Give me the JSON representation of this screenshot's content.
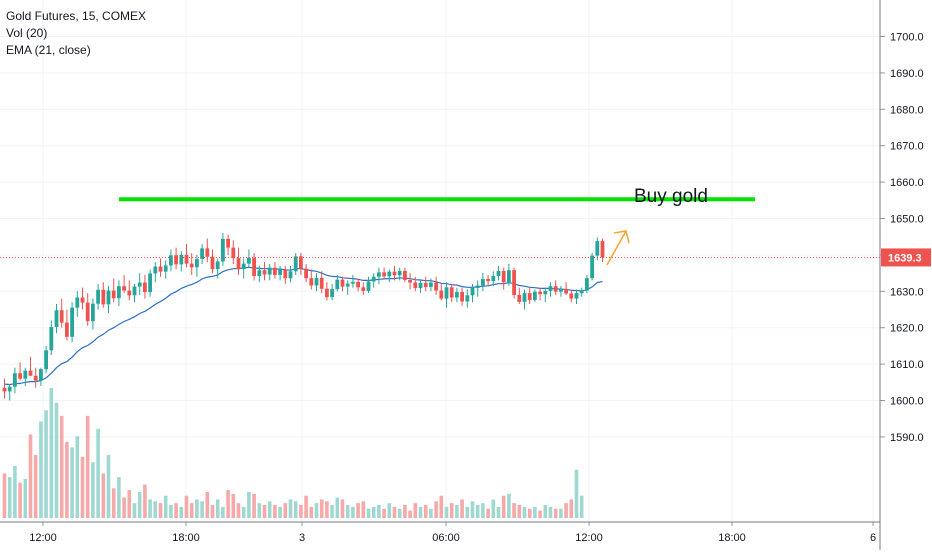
{
  "legend": {
    "symbol": "Gold Futures, 15, COMEX",
    "volume": "Vol (20)",
    "ema": "EMA (21, close)"
  },
  "chart_data": {
    "type": "candlestick",
    "symbol": "Gold Futures",
    "interval": "15",
    "exchange": "COMEX",
    "y_ticks": [
      1590.0,
      1600.0,
      1610.0,
      1620.0,
      1630.0,
      1640.0,
      1650.0,
      1660.0,
      1670.0,
      1680.0,
      1690.0,
      1700.0
    ],
    "ylim": [
      1583.0,
      1711.0
    ],
    "x_ticks": [
      "12:00",
      "18:00",
      "3",
      "06:00",
      "12:00",
      "18:00",
      "6"
    ],
    "last_price": "1639.3",
    "last_price_value": 1639.3,
    "annotations": {
      "text": "Buy gold",
      "level": 1655.3,
      "level_color": "#00e600",
      "arrow_color": "#f5a623"
    },
    "colors": {
      "up": "#26a69a",
      "down": "#ef5350",
      "ema": "#2a6fc9",
      "vol_up": "#9fd8d1",
      "vol_down": "#f5a9a8",
      "last_price_line": "#ef5350"
    },
    "candles": [
      [
        1603.5,
        1606.0,
        1600.5,
        1602.5
      ],
      [
        1602.5,
        1604.5,
        1600.0,
        1603.8
      ],
      [
        1603.8,
        1609.0,
        1602.0,
        1607.5
      ],
      [
        1607.5,
        1610.5,
        1605.5,
        1606.0
      ],
      [
        1606.0,
        1609.0,
        1604.0,
        1608.2
      ],
      [
        1608.2,
        1612.0,
        1606.8,
        1606.8
      ],
      [
        1606.8,
        1609.0,
        1603.5,
        1605.5
      ],
      [
        1605.5,
        1609.0,
        1604.0,
        1608.6
      ],
      [
        1608.6,
        1615.0,
        1607.5,
        1613.8
      ],
      [
        1613.8,
        1622.0,
        1612.5,
        1620.2
      ],
      [
        1620.2,
        1626.5,
        1618.5,
        1624.8
      ],
      [
        1624.8,
        1628.0,
        1620.0,
        1621.4
      ],
      [
        1621.4,
        1625.0,
        1616.5,
        1617.5
      ],
      [
        1617.5,
        1627.0,
        1616.0,
        1625.5
      ],
      [
        1625.5,
        1630.0,
        1623.0,
        1628.3
      ],
      [
        1628.3,
        1631.0,
        1625.0,
        1626.9
      ],
      [
        1626.9,
        1629.5,
        1620.5,
        1621.8
      ],
      [
        1621.8,
        1628.0,
        1619.5,
        1626.6
      ],
      [
        1626.6,
        1632.0,
        1625.0,
        1630.4
      ],
      [
        1630.4,
        1632.5,
        1625.5,
        1626.4
      ],
      [
        1626.4,
        1631.5,
        1624.0,
        1630.2
      ],
      [
        1630.2,
        1633.5,
        1627.0,
        1628.1
      ],
      [
        1628.1,
        1633.0,
        1626.0,
        1631.4
      ],
      [
        1631.4,
        1634.5,
        1629.5,
        1630.2
      ],
      [
        1630.2,
        1633.0,
        1627.5,
        1628.9
      ],
      [
        1628.9,
        1632.0,
        1627.0,
        1631.3
      ],
      [
        1631.3,
        1635.0,
        1629.0,
        1632.4
      ],
      [
        1632.4,
        1634.5,
        1628.0,
        1629.8
      ],
      [
        1629.8,
        1636.0,
        1628.5,
        1634.9
      ],
      [
        1634.9,
        1638.0,
        1632.5,
        1636.8
      ],
      [
        1636.8,
        1639.0,
        1634.0,
        1635.4
      ],
      [
        1635.4,
        1638.5,
        1633.5,
        1637.1
      ],
      [
        1637.1,
        1641.5,
        1635.5,
        1639.9
      ],
      [
        1639.9,
        1642.0,
        1636.0,
        1637.4
      ],
      [
        1637.4,
        1641.0,
        1635.5,
        1640.0
      ],
      [
        1640.0,
        1643.0,
        1636.5,
        1637.6
      ],
      [
        1637.6,
        1640.5,
        1634.5,
        1636.6
      ],
      [
        1636.6,
        1640.0,
        1634.0,
        1638.9
      ],
      [
        1638.9,
        1643.0,
        1637.5,
        1641.8
      ],
      [
        1641.8,
        1644.5,
        1638.0,
        1639.5
      ],
      [
        1639.5,
        1641.5,
        1635.0,
        1636.1
      ],
      [
        1636.1,
        1639.0,
        1633.5,
        1638.2
      ],
      [
        1638.2,
        1646.0,
        1637.0,
        1644.4
      ],
      [
        1644.4,
        1645.5,
        1640.0,
        1642.0
      ],
      [
        1642.0,
        1644.0,
        1637.5,
        1639.1
      ],
      [
        1639.1,
        1642.0,
        1634.5,
        1636.1
      ],
      [
        1636.1,
        1639.0,
        1633.5,
        1637.6
      ],
      [
        1637.6,
        1641.5,
        1636.5,
        1639.2
      ],
      [
        1639.2,
        1640.5,
        1633.0,
        1634.2
      ],
      [
        1634.2,
        1637.0,
        1632.5,
        1635.8
      ],
      [
        1635.8,
        1638.0,
        1633.0,
        1634.6
      ],
      [
        1634.6,
        1637.5,
        1633.0,
        1636.5
      ],
      [
        1636.5,
        1638.0,
        1633.5,
        1634.5
      ],
      [
        1634.5,
        1637.0,
        1633.0,
        1635.9
      ],
      [
        1635.9,
        1637.0,
        1632.0,
        1633.6
      ],
      [
        1633.6,
        1637.0,
        1632.5,
        1635.5
      ],
      [
        1635.5,
        1640.5,
        1634.5,
        1639.6
      ],
      [
        1639.6,
        1640.5,
        1634.5,
        1636.2
      ],
      [
        1636.2,
        1637.5,
        1632.5,
        1633.6
      ],
      [
        1633.6,
        1636.0,
        1630.5,
        1631.6
      ],
      [
        1631.6,
        1635.0,
        1630.0,
        1633.7
      ],
      [
        1633.7,
        1635.5,
        1629.5,
        1630.7
      ],
      [
        1630.7,
        1632.5,
        1627.5,
        1628.4
      ],
      [
        1628.4,
        1632.0,
        1627.5,
        1630.6
      ],
      [
        1630.6,
        1634.5,
        1630.0,
        1633.2
      ],
      [
        1633.2,
        1634.0,
        1630.0,
        1631.3
      ],
      [
        1631.3,
        1633.0,
        1629.0,
        1632.1
      ],
      [
        1632.1,
        1634.5,
        1631.0,
        1632.6
      ],
      [
        1632.6,
        1633.5,
        1630.0,
        1631.1
      ],
      [
        1631.1,
        1632.5,
        1629.0,
        1630.1
      ],
      [
        1630.1,
        1634.0,
        1629.5,
        1632.7
      ],
      [
        1632.7,
        1635.0,
        1631.0,
        1634.0
      ],
      [
        1634.0,
        1636.5,
        1632.0,
        1635.2
      ],
      [
        1635.2,
        1636.5,
        1633.5,
        1634.1
      ],
      [
        1634.1,
        1636.0,
        1632.5,
        1635.4
      ],
      [
        1635.4,
        1637.0,
        1633.0,
        1634.4
      ],
      [
        1634.4,
        1636.5,
        1633.0,
        1635.6
      ],
      [
        1635.6,
        1636.5,
        1632.5,
        1633.1
      ],
      [
        1633.1,
        1635.0,
        1630.5,
        1632.4
      ],
      [
        1632.4,
        1634.0,
        1630.0,
        1630.9
      ],
      [
        1630.9,
        1633.0,
        1629.5,
        1632.3
      ],
      [
        1632.3,
        1634.0,
        1630.0,
        1631.2
      ],
      [
        1631.2,
        1633.5,
        1630.0,
        1632.4
      ],
      [
        1632.4,
        1634.0,
        1629.0,
        1630.2
      ],
      [
        1630.2,
        1632.0,
        1627.5,
        1628.0
      ],
      [
        1628.0,
        1632.5,
        1625.5,
        1631.1
      ],
      [
        1631.1,
        1632.0,
        1627.0,
        1628.3
      ],
      [
        1628.3,
        1631.0,
        1627.0,
        1629.8
      ],
      [
        1629.8,
        1631.0,
        1626.0,
        1627.2
      ],
      [
        1627.2,
        1630.5,
        1625.5,
        1628.9
      ],
      [
        1628.9,
        1632.0,
        1627.0,
        1630.9
      ],
      [
        1630.9,
        1633.0,
        1628.5,
        1631.6
      ],
      [
        1631.6,
        1635.0,
        1630.0,
        1633.4
      ],
      [
        1633.4,
        1634.5,
        1631.5,
        1632.8
      ],
      [
        1632.8,
        1635.5,
        1631.5,
        1634.2
      ],
      [
        1634.2,
        1637.0,
        1633.0,
        1635.6
      ],
      [
        1635.6,
        1636.5,
        1630.5,
        1632.5
      ],
      [
        1632.5,
        1637.5,
        1631.5,
        1635.8
      ],
      [
        1635.8,
        1636.5,
        1628.0,
        1629.0
      ],
      [
        1629.0,
        1631.0,
        1626.5,
        1627.1
      ],
      [
        1627.1,
        1630.5,
        1625.0,
        1629.5
      ],
      [
        1629.5,
        1631.0,
        1626.5,
        1627.6
      ],
      [
        1627.6,
        1630.5,
        1627.0,
        1629.9
      ],
      [
        1629.9,
        1631.0,
        1627.5,
        1629.2
      ],
      [
        1629.2,
        1631.0,
        1627.0,
        1630.1
      ],
      [
        1630.1,
        1632.5,
        1628.5,
        1631.4
      ],
      [
        1631.4,
        1633.0,
        1629.0,
        1629.9
      ],
      [
        1629.9,
        1631.5,
        1628.5,
        1630.6
      ],
      [
        1630.6,
        1632.5,
        1629.0,
        1629.4
      ],
      [
        1629.4,
        1630.5,
        1627.0,
        1628.0
      ],
      [
        1628.0,
        1630.5,
        1626.5,
        1629.5
      ],
      [
        1629.5,
        1631.0,
        1628.5,
        1630.2
      ],
      [
        1630.2,
        1634.5,
        1629.5,
        1633.6
      ],
      [
        1633.6,
        1640.5,
        1633.0,
        1639.8
      ],
      [
        1639.8,
        1644.8,
        1638.5,
        1643.8
      ],
      [
        1643.8,
        1644.5,
        1638.0,
        1639.3
      ]
    ],
    "volume": [
      24,
      22,
      28,
      19,
      21,
      45,
      34,
      52,
      58,
      70,
      62,
      55,
      41,
      38,
      44,
      33,
      55,
      30,
      48,
      24,
      34,
      16,
      22,
      11,
      15,
      8,
      14,
      18,
      10,
      9,
      8,
      12,
      7,
      8,
      6,
      12,
      8,
      10,
      9,
      14,
      7,
      10,
      6,
      15,
      13,
      8,
      6,
      14,
      13,
      8,
      7,
      9,
      7,
      6,
      8,
      10,
      9,
      7,
      12,
      6,
      8,
      10,
      9,
      7,
      11,
      10,
      7,
      6,
      8,
      9,
      5,
      6,
      7,
      5,
      8,
      6,
      5,
      7,
      4,
      8,
      6,
      7,
      5,
      9,
      12,
      6,
      8,
      7,
      10,
      6,
      9,
      7,
      8,
      5,
      10,
      6,
      12,
      13,
      8,
      7,
      6,
      5,
      6,
      4,
      7,
      6,
      5,
      5,
      8,
      10,
      26,
      12
    ],
    "ema": [
      1604.5,
      1604.4,
      1604.6,
      1604.7,
      1605.0,
      1605.2,
      1605.2,
      1605.5,
      1606.2,
      1607.5,
      1609.0,
      1610.1,
      1610.7,
      1611.9,
      1613.4,
      1614.5,
      1615.1,
      1616.1,
      1617.4,
      1618.2,
      1619.3,
      1620.0,
      1620.9,
      1621.7,
      1622.3,
      1623.0,
      1623.9,
      1624.5,
      1625.4,
      1626.4,
      1627.2,
      1628.1,
      1629.2,
      1629.9,
      1630.8,
      1631.4,
      1631.9,
      1632.5,
      1633.4,
      1633.9,
      1634.1,
      1634.5,
      1635.4,
      1635.9,
      1636.2,
      1636.2,
      1636.4,
      1636.6,
      1636.4,
      1636.3,
      1636.2,
      1636.2,
      1636.1,
      1636.1,
      1635.9,
      1635.8,
      1636.2,
      1636.2,
      1636.0,
      1635.7,
      1635.5,
      1635.0,
      1634.4,
      1634.1,
      1634.0,
      1633.7,
      1633.6,
      1633.5,
      1633.3,
      1633.0,
      1633.0,
      1633.1,
      1633.3,
      1633.4,
      1633.5,
      1633.5,
      1633.7,
      1633.6,
      1633.5,
      1633.2,
      1633.1,
      1632.9,
      1632.9,
      1632.6,
      1632.2,
      1632.1,
      1631.8,
      1631.7,
      1631.3,
      1631.1,
      1631.1,
      1631.2,
      1631.4,
      1631.5,
      1631.8,
      1632.1,
      1632.1,
      1632.4,
      1632.1,
      1631.6,
      1631.4,
      1631.1,
      1631.0,
      1630.8,
      1630.8,
      1630.8,
      1630.7,
      1630.6,
      1630.5,
      1630.3,
      1630.2,
      1630.1,
      1630.4,
      1631.2,
      1632.4,
      1632.7
    ]
  }
}
